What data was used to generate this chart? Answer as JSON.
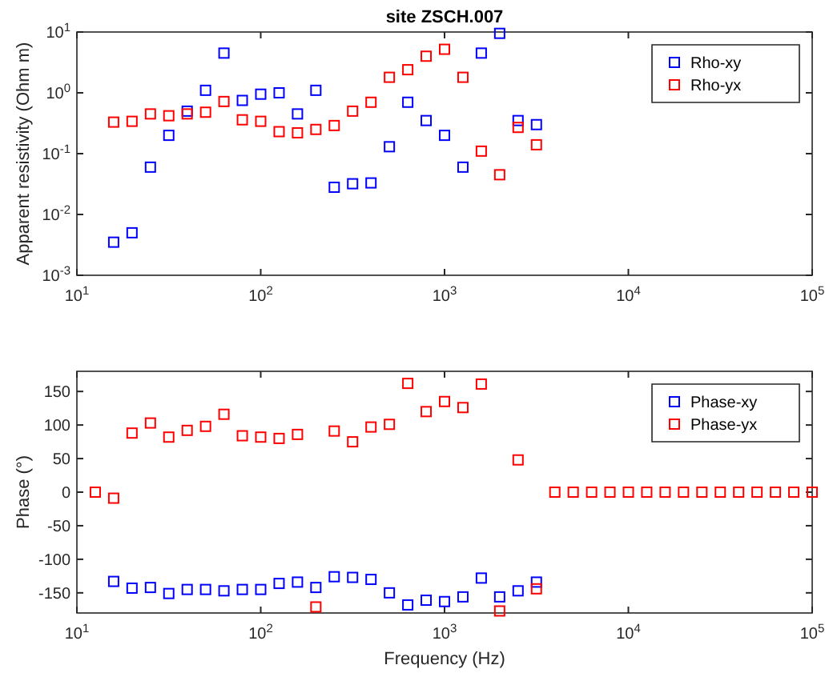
{
  "chart_data": [
    {
      "type": "scatter",
      "title": "site ZSCH.007",
      "ylabel": "Apparent resistivity (Ohm m)",
      "log": "xy",
      "marker": "square",
      "legend": "top right",
      "grid": false,
      "xlim": [
        10,
        100000
      ],
      "xticks": [
        {
          "value": 10,
          "label": "10$^{1}$"
        },
        {
          "value": 100,
          "label": "10$^{2}$"
        },
        {
          "value": 1000,
          "label": "10$^{3}$"
        },
        {
          "value": 10000,
          "label": "10$^{4}$"
        },
        {
          "value": 100000,
          "label": "10$^{5}$"
        }
      ],
      "ylim": [
        0.001,
        10
      ],
      "yticks": [
        {
          "value": 0.001,
          "label": "10$^{-3}$"
        },
        {
          "value": 0.01,
          "label": "10$^{-2}$"
        },
        {
          "value": 0.1,
          "label": "10$^{-1}$"
        },
        {
          "value": 1,
          "label": "10$^{0}$"
        },
        {
          "value": 10,
          "label": "10$^{1}$"
        }
      ],
      "x": [
        15.85,
        19.95,
        25.12,
        31.62,
        39.81,
        50.12,
        63.1,
        79.43,
        100,
        125.9,
        158.5,
        199.5,
        251.2,
        316.2,
        398.1,
        501.2,
        631,
        794.3,
        1000,
        1259,
        1585,
        1995,
        2512,
        3162
      ],
      "series": [
        {
          "name": "Rho-xy",
          "color": "#0000ff",
          "values": [
            0.0035,
            0.005,
            0.06,
            0.2,
            0.5,
            1.1,
            4.5,
            0.75,
            0.95,
            1.0,
            0.45,
            1.1,
            0.028,
            0.032,
            0.033,
            0.13,
            0.7,
            0.35,
            0.2,
            0.06,
            4.5,
            9.5,
            0.35,
            0.3
          ]
        },
        {
          "name": "Rho-yx",
          "color": "#ff0000",
          "values": [
            0.33,
            0.34,
            0.45,
            0.42,
            0.45,
            0.48,
            0.72,
            0.36,
            0.34,
            0.23,
            0.22,
            0.25,
            0.29,
            0.5,
            0.7,
            1.8,
            2.4,
            4,
            5.2,
            1.8,
            0.11,
            0.045,
            0.27,
            0.14
          ]
        }
      ]
    },
    {
      "type": "scatter",
      "xlabel": "Frequency (Hz)",
      "ylabel": "Phase (°)",
      "log": "x",
      "marker": "square",
      "legend": "top right",
      "grid": false,
      "xlim": [
        10,
        100000
      ],
      "xticks": [
        {
          "value": 10,
          "label": "10$^{1}$"
        },
        {
          "value": 100,
          "label": "10$^{2}$"
        },
        {
          "value": 1000,
          "label": "10$^{3}$"
        },
        {
          "value": 10000,
          "label": "10$^{4}$"
        },
        {
          "value": 100000,
          "label": "10$^{5}$"
        }
      ],
      "ylim": [
        -180,
        180
      ],
      "yticks": [
        -150,
        -100,
        -50,
        0,
        50,
        100,
        150
      ],
      "series": [
        {
          "name": "Phase-xy",
          "color": "#0000ff",
          "x": [
            15.85,
            19.95,
            25.12,
            31.62,
            39.81,
            50.12,
            63.1,
            79.43,
            100,
            125.9,
            158.5,
            199.5,
            251.2,
            316.2,
            398.1,
            501.2,
            631,
            794.3,
            1000,
            1259,
            1585,
            1995,
            2512,
            3162
          ],
          "values": [
            -133,
            -143,
            -142,
            -151,
            -145,
            -145,
            -147,
            -145,
            -145,
            -136,
            -134,
            -142,
            -126,
            -127,
            -130,
            -150,
            -168,
            -161,
            -163,
            -156,
            -128,
            -156,
            -147,
            -134
          ]
        },
        {
          "name": "Phase-yx",
          "color": "#ff0000",
          "x": [
            12.59,
            15.85,
            19.95,
            25.12,
            31.62,
            39.81,
            50.12,
            63.1,
            79.43,
            100,
            125.9,
            158.5,
            199.5,
            251.2,
            316.2,
            398.1,
            501.2,
            631,
            794.3,
            1000,
            1259,
            1585,
            1995,
            2512,
            3162,
            3981,
            5012,
            6310,
            7943,
            10000,
            12589,
            15849,
            19953,
            25119,
            31623,
            39811,
            50119,
            63096,
            79433,
            100000
          ],
          "values": [
            0,
            -9,
            88,
            103,
            82,
            92,
            98,
            116,
            84,
            82,
            80,
            86,
            -171,
            91,
            75,
            97,
            101,
            162,
            120,
            135,
            126,
            161,
            -177,
            48,
            -144,
            0,
            0,
            0,
            0,
            0,
            0,
            0,
            0,
            0,
            0,
            0,
            0,
            0,
            0,
            0
          ]
        }
      ]
    }
  ]
}
